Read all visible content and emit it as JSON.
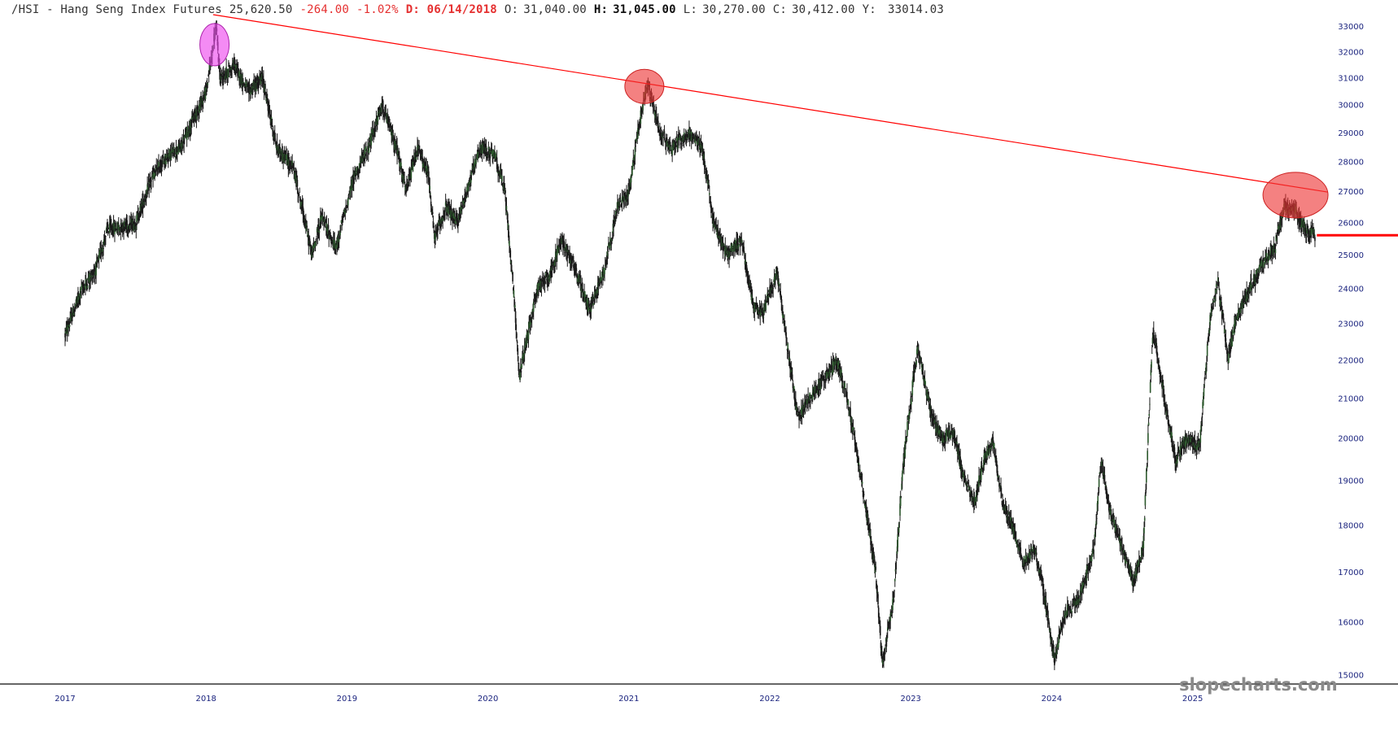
{
  "header": {
    "symbol": "/HSI - Hang Seng Index Futures",
    "price": "25,620.50",
    "change": "-264.00",
    "change_pct": "-1.02%",
    "date": "D: 06/14/2018",
    "open_label": "O:",
    "open": "31,040.00",
    "high_label": "H:",
    "high": "31,045.00",
    "low_label": "L:",
    "low": "30,270.00",
    "close_label": "C:",
    "close": "30,412.00",
    "y_label": "Y:",
    "y_value": "33014.03"
  },
  "watermark": "slopecharts.com",
  "colors": {
    "candle": "#1a1a1a",
    "up_body": "#2e5a2e",
    "trendline": "#ff0000",
    "highlight_peak": "#ee44ee",
    "highlight_touch": "#ee3333",
    "axis_text": "#1a237e",
    "axis_line": "#333333"
  },
  "chart_data": {
    "type": "candlestick",
    "title": "/HSI - Hang Seng Index Futures",
    "xlabel": "",
    "ylabel": "",
    "x_range": [
      2016.78,
      2025.96
    ],
    "ylim": [
      14600,
      33500
    ],
    "y_scale": "log",
    "grid": false,
    "x_ticks": [
      "2017",
      "2018",
      "2019",
      "2020",
      "2021",
      "2022",
      "2023",
      "2024",
      "2025"
    ],
    "y_ticks": [
      15000,
      16000,
      17000,
      18000,
      19000,
      20000,
      21000,
      22000,
      23000,
      24000,
      25000,
      26000,
      27000,
      28000,
      29000,
      30000,
      31000,
      32000,
      33000
    ],
    "price_path": [
      [
        2017.0,
        22700
      ],
      [
        2017.12,
        24000
      ],
      [
        2017.22,
        24600
      ],
      [
        2017.3,
        25800
      ],
      [
        2017.5,
        26000
      ],
      [
        2017.62,
        27500
      ],
      [
        2017.72,
        28200
      ],
      [
        2017.82,
        28500
      ],
      [
        2017.9,
        29400
      ],
      [
        2018.0,
        30500
      ],
      [
        2018.07,
        33000
      ],
      [
        2018.1,
        31000
      ],
      [
        2018.2,
        31500
      ],
      [
        2018.3,
        30500
      ],
      [
        2018.4,
        31000
      ],
      [
        2018.5,
        28500
      ],
      [
        2018.62,
        27800
      ],
      [
        2018.75,
        25000
      ],
      [
        2018.82,
        26200
      ],
      [
        2018.92,
        25200
      ],
      [
        2019.05,
        27500
      ],
      [
        2019.15,
        28500
      ],
      [
        2019.25,
        30000
      ],
      [
        2019.35,
        28500
      ],
      [
        2019.42,
        27000
      ],
      [
        2019.5,
        28500
      ],
      [
        2019.58,
        27500
      ],
      [
        2019.62,
        25500
      ],
      [
        2019.7,
        26500
      ],
      [
        2019.78,
        26000
      ],
      [
        2019.88,
        27500
      ],
      [
        2019.95,
        28500
      ],
      [
        2020.05,
        28200
      ],
      [
        2020.12,
        27000
      ],
      [
        2020.2,
        23000
      ],
      [
        2020.22,
        21500
      ],
      [
        2020.35,
        24000
      ],
      [
        2020.45,
        24500
      ],
      [
        2020.52,
        25500
      ],
      [
        2020.6,
        24800
      ],
      [
        2020.72,
        23400
      ],
      [
        2020.82,
        24500
      ],
      [
        2020.92,
        26500
      ],
      [
        2021.0,
        27000
      ],
      [
        2021.08,
        29500
      ],
      [
        2021.13,
        30800
      ],
      [
        2021.22,
        29000
      ],
      [
        2021.3,
        28500
      ],
      [
        2021.42,
        29000
      ],
      [
        2021.52,
        28500
      ],
      [
        2021.6,
        26000
      ],
      [
        2021.7,
        25000
      ],
      [
        2021.8,
        25500
      ],
      [
        2021.88,
        23500
      ],
      [
        2021.95,
        23300
      ],
      [
        2022.05,
        24500
      ],
      [
        2022.12,
        22500
      ],
      [
        2022.2,
        20500
      ],
      [
        2022.28,
        21000
      ],
      [
        2022.38,
        21500
      ],
      [
        2022.48,
        22000
      ],
      [
        2022.55,
        21000
      ],
      [
        2022.65,
        19000
      ],
      [
        2022.75,
        17000
      ],
      [
        2022.8,
        15200
      ],
      [
        2022.88,
        16500
      ],
      [
        2022.95,
        19500
      ],
      [
        2023.0,
        21000
      ],
      [
        2023.05,
        22300
      ],
      [
        2023.15,
        20500
      ],
      [
        2023.22,
        20000
      ],
      [
        2023.3,
        20200
      ],
      [
        2023.38,
        19000
      ],
      [
        2023.45,
        18500
      ],
      [
        2023.52,
        19500
      ],
      [
        2023.58,
        20000
      ],
      [
        2023.65,
        18500
      ],
      [
        2023.72,
        18000
      ],
      [
        2023.8,
        17200
      ],
      [
        2023.88,
        17500
      ],
      [
        2023.95,
        16500
      ],
      [
        2024.02,
        15300
      ],
      [
        2024.1,
        16200
      ],
      [
        2024.2,
        16500
      ],
      [
        2024.3,
        17500
      ],
      [
        2024.35,
        19500
      ],
      [
        2024.42,
        18200
      ],
      [
        2024.5,
        17500
      ],
      [
        2024.58,
        16800
      ],
      [
        2024.65,
        17500
      ],
      [
        2024.72,
        22800
      ],
      [
        2024.8,
        21000
      ],
      [
        2024.88,
        19500
      ],
      [
        2024.95,
        20000
      ],
      [
        2025.05,
        19800
      ],
      [
        2025.12,
        23000
      ],
      [
        2025.18,
        24200
      ],
      [
        2025.25,
        22000
      ],
      [
        2025.3,
        23000
      ],
      [
        2025.4,
        24000
      ],
      [
        2025.5,
        24800
      ],
      [
        2025.58,
        25200
      ],
      [
        2025.65,
        26500
      ],
      [
        2025.72,
        26500
      ],
      [
        2025.8,
        25800
      ],
      [
        2025.87,
        25620
      ]
    ],
    "trendline": {
      "start": [
        2018.05,
        33500
      ],
      "end": [
        2025.96,
        27000
      ]
    },
    "last_price_level": 25620,
    "highlights": [
      {
        "x": 2018.06,
        "y": 32300,
        "kind": "peak"
      },
      {
        "x": 2021.11,
        "y": 30700,
        "kind": "touch"
      },
      {
        "x": 2025.73,
        "y": 26900,
        "kind": "touch"
      }
    ]
  }
}
